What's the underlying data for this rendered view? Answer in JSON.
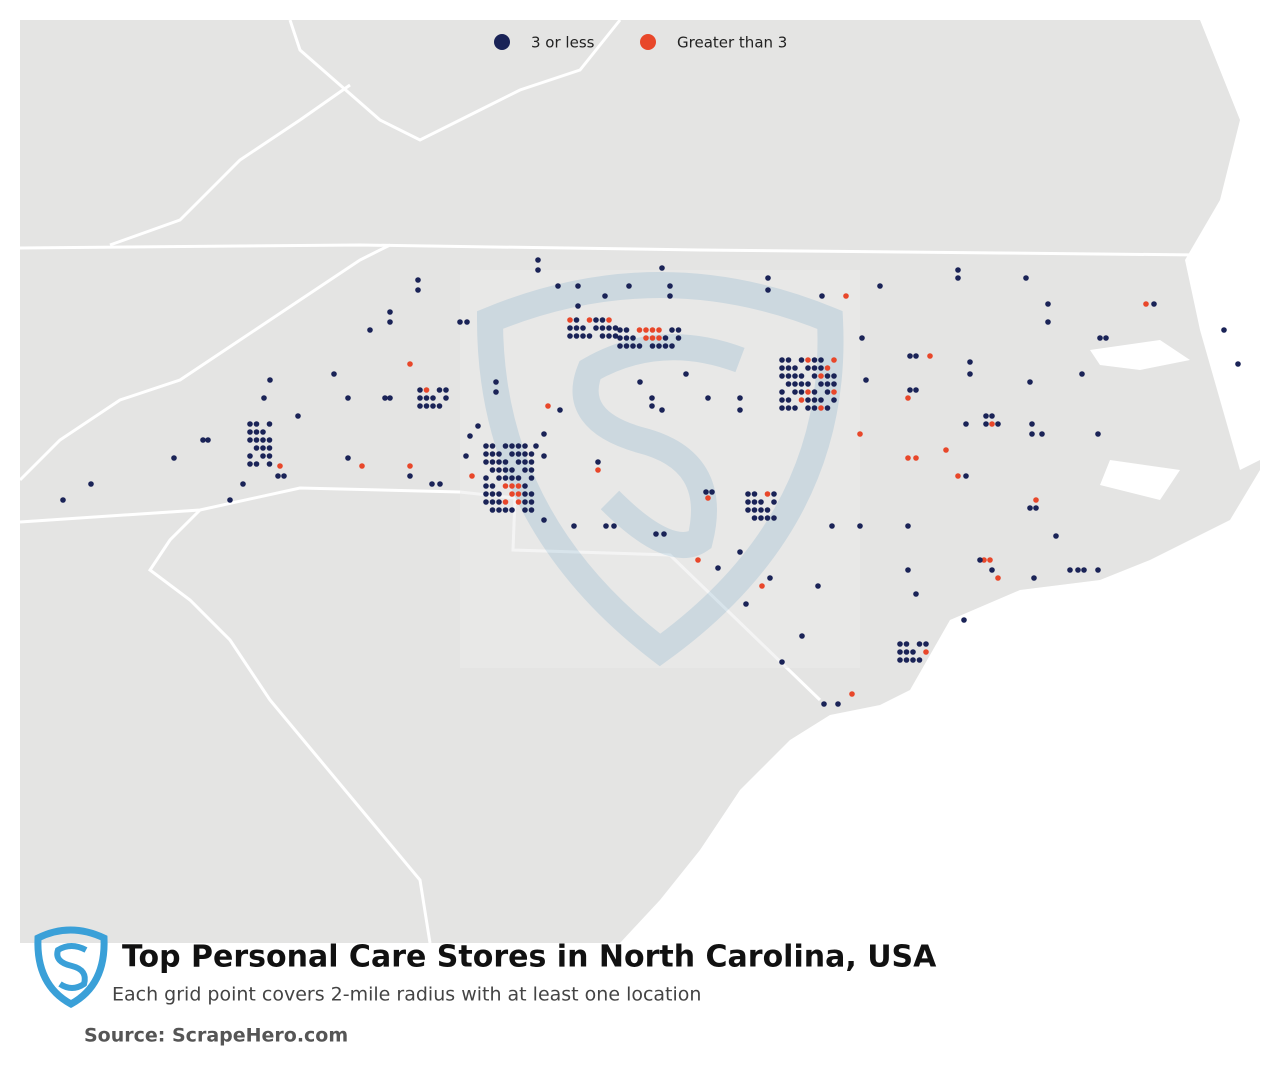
{
  "legend": {
    "items": [
      {
        "label": "3 or less",
        "color": "#1a2357"
      },
      {
        "label": "Greater than 3",
        "color": "#e8472a"
      }
    ]
  },
  "title": "Top Personal Care Stores in North Carolina, USA",
  "subtitle": "Each grid point covers 2-mile radius with at least one location",
  "source": "Source: ScrapeHero.com"
}
